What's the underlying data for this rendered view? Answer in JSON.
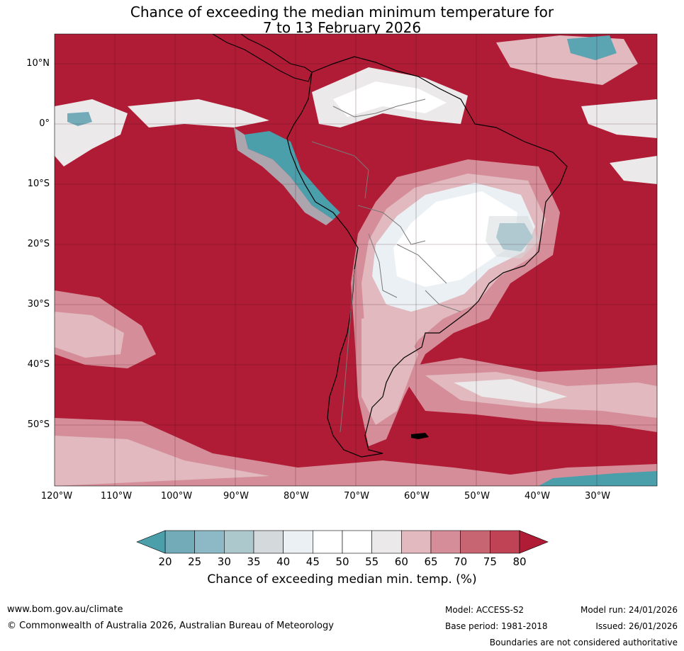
{
  "title": {
    "line1": "Chance of exceeding the median minimum temperature for",
    "line2": "7 to 13 February 2026"
  },
  "map": {
    "latitude_labels": [
      "10°N",
      "0°",
      "10°S",
      "20°S",
      "30°S",
      "40°S",
      "50°S"
    ],
    "longitude_labels": [
      "120°W",
      "110°W",
      "100°W",
      "90°W",
      "80°W",
      "70°W",
      "60°W",
      "50°W",
      "40°W",
      "30°W"
    ],
    "latitude_values": [
      10,
      0,
      -10,
      -20,
      -30,
      -40,
      -50
    ],
    "longitude_values": [
      -120,
      -110,
      -100,
      -90,
      -80,
      -70,
      -60,
      -50,
      -40,
      -30
    ],
    "extent": {
      "lon_min": -120,
      "lon_max": -20,
      "lat_min": -60,
      "lat_max": 15
    },
    "background_color": "#b01c36"
  },
  "colorbar": {
    "ticks": [
      "20",
      "25",
      "30",
      "35",
      "40",
      "45",
      "50",
      "55",
      "60",
      "65",
      "70",
      "75",
      "80"
    ],
    "colors": [
      "#5aa5b1",
      "#73acb8",
      "#8db9c6",
      "#adc8cd",
      "#d4d9dc",
      "#eaf0f3",
      "#ffffff",
      "#ffffff",
      "#ebe9ea",
      "#e1b9bf",
      "#d58e99",
      "#c76572",
      "#bf4355"
    ],
    "below_color": "#4a9fab",
    "above_color": "#b01c36",
    "label": "Chance of exceeding median min. temp. (%)"
  },
  "footer": {
    "url": "www.bom.gov.au/climate",
    "copyright": "© Commonwealth of Australia 2026, Australian Bureau of Meteorology",
    "model": "Model: ACCESS-S2",
    "base_period": "Base period: 1981-2018",
    "model_run": "Model run: 24/01/2026",
    "issued": "Issued: 26/01/2026",
    "disclaimer": "Boundaries are not considered authoritative"
  }
}
